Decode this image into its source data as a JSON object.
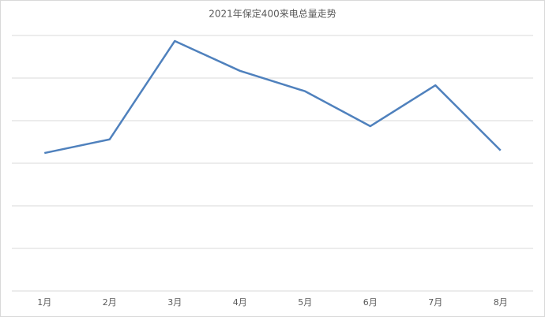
{
  "chart_data": {
    "type": "line",
    "title": "2021年保定400来电总量走势",
    "categories": [
      "1月",
      "2月",
      "3月",
      "4月",
      "5月",
      "6月",
      "7月",
      "8月"
    ],
    "series": [
      {
        "color": "#4f81bd",
        "values": [
          3.24,
          3.56,
          5.87,
          5.17,
          4.69,
          3.87,
          4.83,
          3.3
        ]
      }
    ],
    "ylim": [
      0,
      6
    ],
    "yticks": [
      0,
      1,
      2,
      3,
      4,
      5,
      6
    ],
    "grid": true
  }
}
